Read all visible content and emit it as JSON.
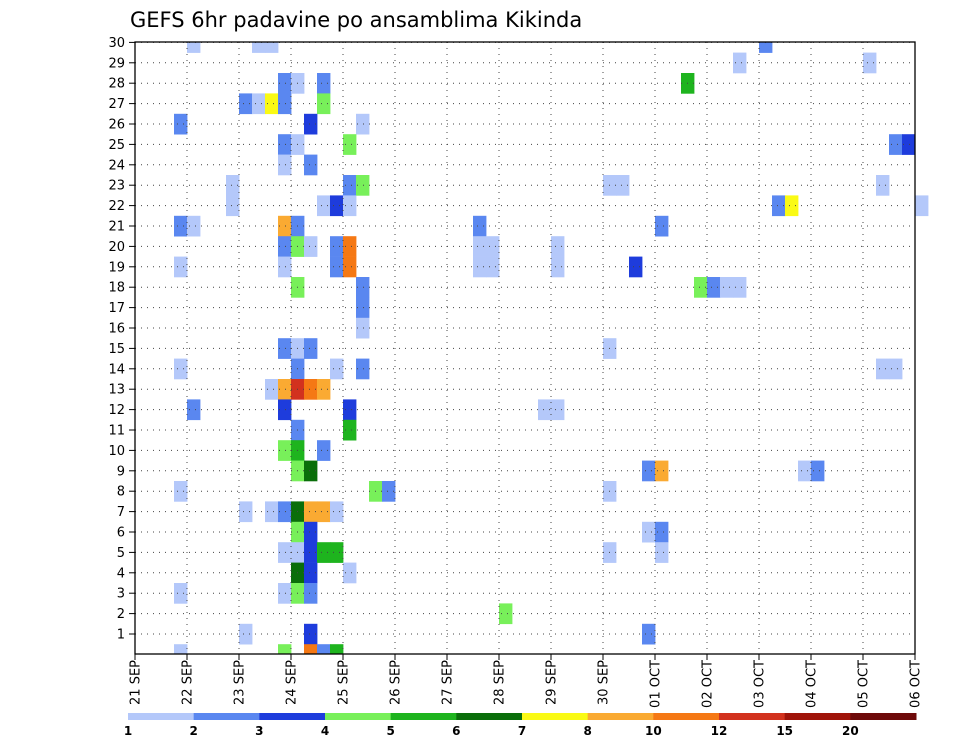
{
  "chart_data": {
    "type": "heatmap",
    "title": "GEFS 6hr padavine po ansamblima Kikinda",
    "y_ticks": [
      "1",
      "2",
      "3",
      "4",
      "5",
      "6",
      "7",
      "8",
      "9",
      "10",
      "11",
      "12",
      "13",
      "14",
      "15",
      "16",
      "17",
      "18",
      "19",
      "20",
      "21",
      "22",
      "23",
      "24",
      "25",
      "26",
      "27",
      "28",
      "29",
      "30"
    ],
    "x_ticks": [
      "21 SEP",
      "22 SEP",
      "23 SEP",
      "24 SEP",
      "25 SEP",
      "26 SEP",
      "27 SEP",
      "28 SEP",
      "29 SEP",
      "30 SEP",
      "01 OCT",
      "02 OCT",
      "03 OCT",
      "04 OCT",
      "05 OCT",
      "06 OCT"
    ],
    "grid": true,
    "colorbar": {
      "labels": [
        "1",
        "2",
        "3",
        "4",
        "5",
        "6",
        "7",
        "8",
        "10",
        "12",
        "15",
        "20"
      ],
      "colors": [
        "#b4c8fa",
        "#5a87f0",
        "#1e3cdc",
        "#78f05a",
        "#1eb41e",
        "#0a6e0a",
        "#fafa14",
        "#faaa32",
        "#f57814",
        "#d2321e",
        "#a0140a",
        "#6e0a0a"
      ]
    },
    "cells": [
      [
        "22 SEP 00",
        30,
        1
      ],
      [
        "23 SEP 06",
        30,
        1
      ],
      [
        "23 SEP 12",
        30,
        1
      ],
      [
        "03 OCT 00",
        30,
        2
      ],
      [
        "02 OCT 12",
        29,
        1
      ],
      [
        "05 OCT 00",
        29,
        1
      ],
      [
        "23 SEP 18",
        28,
        2
      ],
      [
        "24 SEP 00",
        28,
        1
      ],
      [
        "24 SEP 12",
        28,
        2
      ],
      [
        "01 OCT 12",
        28,
        5
      ],
      [
        "23 SEP 00",
        27,
        2
      ],
      [
        "23 SEP 06",
        27,
        1
      ],
      [
        "23 SEP 12",
        27,
        7
      ],
      [
        "23 SEP 18",
        27,
        2
      ],
      [
        "24 SEP 12",
        27,
        4
      ],
      [
        "21 SEP 18",
        26,
        2
      ],
      [
        "24 SEP 06",
        26,
        3
      ],
      [
        "25 SEP 06",
        26,
        1
      ],
      [
        "23 SEP 18",
        25,
        2
      ],
      [
        "24 SEP 00",
        25,
        1
      ],
      [
        "25 SEP 00",
        25,
        4
      ],
      [
        "05 OCT 12",
        25,
        2
      ],
      [
        "05 OCT 18",
        25,
        3
      ],
      [
        "23 SEP 18",
        24,
        1
      ],
      [
        "24 SEP 06",
        24,
        2
      ],
      [
        "22 SEP 18",
        23,
        1
      ],
      [
        "25 SEP 00",
        23,
        2
      ],
      [
        "25 SEP 06",
        23,
        4
      ],
      [
        "30 SEP 00",
        23,
        1
      ],
      [
        "30 SEP 06",
        23,
        1
      ],
      [
        "05 OCT 06",
        23,
        1
      ],
      [
        "22 SEP 18",
        22,
        1
      ],
      [
        "24 SEP 12",
        22,
        1
      ],
      [
        "24 SEP 18",
        22,
        3
      ],
      [
        "25 SEP 00",
        22,
        1
      ],
      [
        "03 OCT 06",
        22,
        2
      ],
      [
        "03 OCT 12",
        22,
        7
      ],
      [
        "06 OCT 00",
        22,
        1
      ],
      [
        "21 SEP 18",
        21,
        2
      ],
      [
        "22 SEP 00",
        21,
        1
      ],
      [
        "23 SEP 18",
        21,
        8
      ],
      [
        "24 SEP 00",
        21,
        2
      ],
      [
        "27 SEP 12",
        21,
        2
      ],
      [
        "01 OCT 00",
        21,
        2
      ],
      [
        "23 SEP 18",
        20,
        2
      ],
      [
        "24 SEP 00",
        20,
        4
      ],
      [
        "24 SEP 06",
        20,
        1
      ],
      [
        "24 SEP 18",
        20,
        2
      ],
      [
        "25 SEP 00",
        20,
        9
      ],
      [
        "27 SEP 12",
        20,
        1
      ],
      [
        "27 SEP 18",
        20,
        1
      ],
      [
        "29 SEP 00",
        20,
        1
      ],
      [
        "21 SEP 18",
        19,
        1
      ],
      [
        "23 SEP 18",
        19,
        1
      ],
      [
        "24 SEP 18",
        19,
        2
      ],
      [
        "25 SEP 00",
        19,
        9
      ],
      [
        "27 SEP 12",
        19,
        1
      ],
      [
        "27 SEP 18",
        19,
        1
      ],
      [
        "29 SEP 00",
        19,
        1
      ],
      [
        "30 SEP 12",
        19,
        3
      ],
      [
        "24 SEP 00",
        18,
        4
      ],
      [
        "25 SEP 06",
        18,
        2
      ],
      [
        "01 OCT 18",
        18,
        4
      ],
      [
        "02 OCT 00",
        18,
        2
      ],
      [
        "02 OCT 06",
        18,
        1
      ],
      [
        "02 OCT 12",
        18,
        1
      ],
      [
        "25 SEP 06",
        17,
        2
      ],
      [
        "25 SEP 06",
        16,
        1
      ],
      [
        "23 SEP 18",
        15,
        2
      ],
      [
        "24 SEP 00",
        15,
        1
      ],
      [
        "24 SEP 06",
        15,
        2
      ],
      [
        "30 SEP 00",
        15,
        1
      ],
      [
        "21 SEP 18",
        14,
        1
      ],
      [
        "24 SEP 00",
        14,
        2
      ],
      [
        "24 SEP 18",
        14,
        1
      ],
      [
        "25 SEP 06",
        14,
        2
      ],
      [
        "05 OCT 06",
        14,
        1
      ],
      [
        "05 OCT 12",
        14,
        1
      ],
      [
        "23 SEP 12",
        13,
        1
      ],
      [
        "23 SEP 18",
        13,
        8
      ],
      [
        "24 SEP 00",
        13,
        10
      ],
      [
        "24 SEP 06",
        13,
        9
      ],
      [
        "24 SEP 12",
        13,
        8
      ],
      [
        "22 SEP 00",
        12,
        2
      ],
      [
        "23 SEP 18",
        12,
        3
      ],
      [
        "25 SEP 00",
        12,
        3
      ],
      [
        "28 SEP 18",
        12,
        1
      ],
      [
        "29 SEP 00",
        12,
        1
      ],
      [
        "24 SEP 00",
        11,
        2
      ],
      [
        "25 SEP 00",
        11,
        5
      ],
      [
        "23 SEP 18",
        10,
        4
      ],
      [
        "24 SEP 00",
        10,
        5
      ],
      [
        "24 SEP 12",
        10,
        2
      ],
      [
        "24 SEP 00",
        9,
        4
      ],
      [
        "24 SEP 06",
        9,
        6
      ],
      [
        "30 SEP 18",
        9,
        2
      ],
      [
        "01 OCT 00",
        9,
        8
      ],
      [
        "03 OCT 18",
        9,
        1
      ],
      [
        "04 OCT 00",
        9,
        2
      ],
      [
        "21 SEP 18",
        8,
        1
      ],
      [
        "25 SEP 12",
        8,
        4
      ],
      [
        "25 SEP 18",
        8,
        2
      ],
      [
        "30 SEP 00",
        8,
        1
      ],
      [
        "23 SEP 00",
        7,
        1
      ],
      [
        "23 SEP 12",
        7,
        1
      ],
      [
        "23 SEP 18",
        7,
        2
      ],
      [
        "24 SEP 00",
        7,
        6
      ],
      [
        "24 SEP 06",
        7,
        8
      ],
      [
        "24 SEP 12",
        7,
        8
      ],
      [
        "24 SEP 18",
        7,
        1
      ],
      [
        "24 SEP 00",
        6,
        4
      ],
      [
        "24 SEP 06",
        6,
        3
      ],
      [
        "30 SEP 18",
        6,
        1
      ],
      [
        "01 OCT 00",
        6,
        2
      ],
      [
        "23 SEP 18",
        5,
        1
      ],
      [
        "24 SEP 00",
        5,
        1
      ],
      [
        "24 SEP 06",
        5,
        3
      ],
      [
        "24 SEP 12",
        5,
        5
      ],
      [
        "24 SEP 18",
        5,
        5
      ],
      [
        "30 SEP 00",
        5,
        1
      ],
      [
        "01 OCT 00",
        5,
        1
      ],
      [
        "24 SEP 00",
        4,
        6
      ],
      [
        "24 SEP 06",
        4,
        3
      ],
      [
        "25 SEP 00",
        4,
        1
      ],
      [
        "21 SEP 18",
        3,
        1
      ],
      [
        "23 SEP 18",
        3,
        1
      ],
      [
        "24 SEP 00",
        3,
        4
      ],
      [
        "24 SEP 06",
        3,
        2
      ],
      [
        "28 SEP 00",
        2,
        4
      ],
      [
        "23 SEP 00",
        1,
        1
      ],
      [
        "24 SEP 06",
        1,
        3
      ],
      [
        "30 SEP 18",
        1,
        2
      ],
      [
        "21 SEP 18",
        0,
        1
      ],
      [
        "23 SEP 18",
        0,
        4
      ],
      [
        "24 SEP 06",
        0,
        9
      ],
      [
        "24 SEP 12",
        0,
        2
      ],
      [
        "24 SEP 18",
        0,
        5
      ]
    ]
  }
}
